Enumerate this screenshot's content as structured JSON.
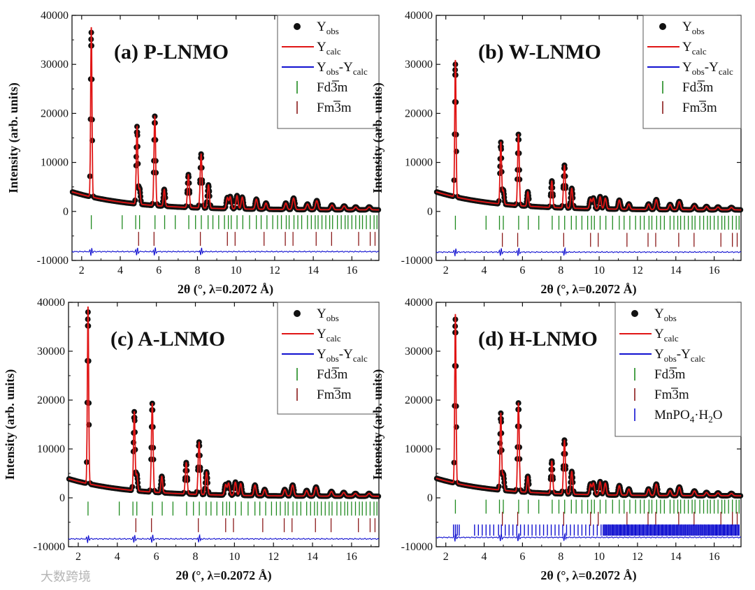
{
  "colors": {
    "obs": "#111111",
    "calc": "#e01515",
    "diff": "#1010d0",
    "fd3m": "#1f8a1f",
    "fm3m": "#8b1a1a",
    "mnpo4": "#1010d0"
  },
  "watermark": "大数跨境",
  "chart_data": [
    {
      "type": "scatter",
      "panel": "(a)",
      "title": "P-LNMO",
      "xlabel": "2θ (°, λ=0.2072 Å)",
      "ylabel": "Intensity (arb. units)",
      "xlim": [
        1.5,
        17.4
      ],
      "ylim": [
        -10000,
        40000
      ],
      "xticks": [
        2,
        4,
        6,
        8,
        10,
        12,
        14,
        16
      ],
      "yticks": [
        -10000,
        0,
        10000,
        20000,
        30000,
        40000
      ],
      "grid": false,
      "legend_position": "top-right",
      "background": {
        "start": 4000,
        "decay": 0.6,
        "floor": 300
      },
      "difference_offset": -8200,
      "peaks": [
        {
          "x": 2.5,
          "y": 36500
        },
        {
          "x": 4.87,
          "y": 17300
        },
        {
          "x": 5.0,
          "y": 4700
        },
        {
          "x": 5.79,
          "y": 19400
        },
        {
          "x": 6.28,
          "y": 4500
        },
        {
          "x": 7.53,
          "y": 7500
        },
        {
          "x": 8.19,
          "y": 11700
        },
        {
          "x": 8.57,
          "y": 5400
        },
        {
          "x": 9.55,
          "y": 2800
        },
        {
          "x": 9.7,
          "y": 3000
        },
        {
          "x": 10.05,
          "y": 3200
        },
        {
          "x": 10.32,
          "y": 2900
        },
        {
          "x": 11.05,
          "y": 2500
        },
        {
          "x": 11.55,
          "y": 1700
        },
        {
          "x": 12.58,
          "y": 1700
        },
        {
          "x": 12.98,
          "y": 2700
        },
        {
          "x": 13.7,
          "y": 1500
        },
        {
          "x": 14.18,
          "y": 2200
        },
        {
          "x": 14.97,
          "y": 1300
        },
        {
          "x": 15.6,
          "y": 1100
        },
        {
          "x": 16.2,
          "y": 900
        },
        {
          "x": 16.9,
          "y": 900
        }
      ],
      "reflection_rows": [
        {
          "phase": "Fd3m",
          "y": -2200,
          "color_key": "fd3m",
          "positions": [
            2.5,
            4.1,
            4.8,
            5.0,
            5.8,
            6.3,
            6.85,
            7.55,
            7.9,
            8.2,
            8.55,
            8.8,
            9.1,
            9.4,
            9.6,
            9.75,
            10.05,
            10.35,
            10.7,
            11.05,
            11.3,
            11.6,
            11.9,
            12.15,
            12.35,
            12.6,
            12.75,
            13.0,
            13.2,
            13.4,
            13.7,
            13.9,
            14.1,
            14.25,
            14.45,
            14.65,
            14.85,
            15.0,
            15.25,
            15.45,
            15.65,
            15.8,
            16.0,
            16.2,
            16.4,
            16.55,
            16.75,
            16.95,
            17.15,
            17.3
          ]
        },
        {
          "phase": "Fm3m",
          "y": -5600,
          "color_key": "fm3m",
          "positions": [
            4.95,
            5.75,
            8.15,
            9.55,
            9.95,
            11.45,
            12.55,
            12.95,
            14.15,
            14.95,
            16.35,
            16.95,
            17.2
          ]
        }
      ],
      "legend": [
        {
          "label": "Y",
          "sub": "obs",
          "type": "marker"
        },
        {
          "label": "Y",
          "sub": "calc",
          "type": "line",
          "color_key": "calc"
        },
        {
          "label": "Y",
          "sub": "obs",
          "label2": "-Y",
          "sub2": "calc",
          "type": "line",
          "color_key": "diff"
        },
        {
          "label": "Fd3m",
          "type": "tick",
          "color_key": "fd3m"
        },
        {
          "label": "Fm3m",
          "type": "tick",
          "color_key": "fm3m"
        }
      ]
    },
    {
      "type": "scatter",
      "panel": "(b)",
      "title": "W-LNMO",
      "xlabel": "2θ (°, λ=0.2072 Å)",
      "ylabel": "Intensity (arb. units)",
      "xlim": [
        1.5,
        17.4
      ],
      "ylim": [
        -10000,
        40000
      ],
      "xticks": [
        2,
        4,
        6,
        8,
        10,
        12,
        14,
        16
      ],
      "yticks": [
        -10000,
        0,
        10000,
        20000,
        30000,
        40000
      ],
      "grid": false,
      "legend_position": "top-right",
      "background": {
        "start": 4000,
        "decay": 0.6,
        "floor": 300
      },
      "difference_offset": -8300,
      "peaks": [
        {
          "x": 2.5,
          "y": 30000
        },
        {
          "x": 4.87,
          "y": 14100
        },
        {
          "x": 5.0,
          "y": 4300
        },
        {
          "x": 5.79,
          "y": 15700
        },
        {
          "x": 6.28,
          "y": 4000
        },
        {
          "x": 7.53,
          "y": 6200
        },
        {
          "x": 8.19,
          "y": 9400
        },
        {
          "x": 8.57,
          "y": 4700
        },
        {
          "x": 9.55,
          "y": 2500
        },
        {
          "x": 9.7,
          "y": 2700
        },
        {
          "x": 10.05,
          "y": 3000
        },
        {
          "x": 10.32,
          "y": 2700
        },
        {
          "x": 11.05,
          "y": 2300
        },
        {
          "x": 11.55,
          "y": 1500
        },
        {
          "x": 12.58,
          "y": 1500
        },
        {
          "x": 12.98,
          "y": 2400
        },
        {
          "x": 13.7,
          "y": 1400
        },
        {
          "x": 14.18,
          "y": 2000
        },
        {
          "x": 14.97,
          "y": 1200
        },
        {
          "x": 15.6,
          "y": 1000
        },
        {
          "x": 16.2,
          "y": 900
        },
        {
          "x": 16.9,
          "y": 800
        }
      ],
      "reflection_rows": [
        {
          "phase": "Fd3m",
          "y": -2300,
          "color_key": "fd3m",
          "positions": [
            2.5,
            4.1,
            4.8,
            5.0,
            5.8,
            6.3,
            6.85,
            7.55,
            7.9,
            8.2,
            8.55,
            8.8,
            9.1,
            9.4,
            9.6,
            9.75,
            10.05,
            10.35,
            10.7,
            11.05,
            11.3,
            11.6,
            11.9,
            12.15,
            12.35,
            12.6,
            12.75,
            13.0,
            13.2,
            13.4,
            13.7,
            13.9,
            14.1,
            14.25,
            14.45,
            14.65,
            14.85,
            15.0,
            15.25,
            15.45,
            15.65,
            15.8,
            16.0,
            16.2,
            16.4,
            16.55,
            16.75,
            16.95,
            17.15,
            17.3
          ]
        },
        {
          "phase": "Fm3m",
          "y": -5800,
          "color_key": "fm3m",
          "positions": [
            4.95,
            5.75,
            8.15,
            9.55,
            9.95,
            11.45,
            12.55,
            12.95,
            14.15,
            14.95,
            16.35,
            16.95,
            17.2
          ]
        }
      ],
      "legend": [
        {
          "label": "Y",
          "sub": "obs",
          "type": "marker"
        },
        {
          "label": "Y",
          "sub": "calc",
          "type": "line",
          "color_key": "calc"
        },
        {
          "label": "Y",
          "sub": "obs",
          "label2": "-Y",
          "sub2": "calc",
          "type": "line",
          "color_key": "diff"
        },
        {
          "label": "Fd3m",
          "type": "tick",
          "color_key": "fd3m"
        },
        {
          "label": "Fm3m",
          "type": "tick",
          "color_key": "fm3m"
        }
      ]
    },
    {
      "type": "scatter",
      "panel": "(c)",
      "title": "A-LNMO",
      "xlabel": "2θ (°, λ=0.2072 Å)",
      "ylabel": "Intensity (arb. units)",
      "xlim": [
        1.5,
        17.4
      ],
      "ylim": [
        -10000,
        40000
      ],
      "xticks": [
        2,
        4,
        6,
        8,
        10,
        12,
        14,
        16
      ],
      "yticks": [
        -10000,
        0,
        10000,
        20000,
        30000,
        40000
      ],
      "grid": false,
      "legend_position": "top-right",
      "background": {
        "start": 3900,
        "decay": 0.6,
        "floor": 300
      },
      "difference_offset": -8400,
      "peaks": [
        {
          "x": 2.5,
          "y": 38000
        },
        {
          "x": 4.87,
          "y": 17600
        },
        {
          "x": 5.0,
          "y": 4800
        },
        {
          "x": 5.79,
          "y": 19300
        },
        {
          "x": 6.28,
          "y": 4400
        },
        {
          "x": 7.53,
          "y": 7200
        },
        {
          "x": 8.19,
          "y": 11400
        },
        {
          "x": 8.57,
          "y": 5300
        },
        {
          "x": 9.55,
          "y": 2700
        },
        {
          "x": 9.7,
          "y": 3000
        },
        {
          "x": 10.05,
          "y": 3200
        },
        {
          "x": 10.32,
          "y": 2900
        },
        {
          "x": 11.05,
          "y": 2600
        },
        {
          "x": 11.55,
          "y": 1700
        },
        {
          "x": 12.58,
          "y": 1700
        },
        {
          "x": 12.98,
          "y": 2600
        },
        {
          "x": 13.7,
          "y": 1500
        },
        {
          "x": 14.18,
          "y": 2200
        },
        {
          "x": 14.97,
          "y": 1300
        },
        {
          "x": 15.6,
          "y": 1100
        },
        {
          "x": 16.2,
          "y": 900
        },
        {
          "x": 16.9,
          "y": 900
        }
      ],
      "reflection_rows": [
        {
          "phase": "Fd3m",
          "y": -2200,
          "color_key": "fd3m",
          "positions": [
            2.5,
            4.1,
            4.8,
            5.0,
            5.8,
            6.3,
            6.85,
            7.55,
            7.9,
            8.2,
            8.55,
            8.8,
            9.1,
            9.4,
            9.6,
            9.75,
            10.05,
            10.35,
            10.7,
            11.05,
            11.3,
            11.6,
            11.9,
            12.15,
            12.35,
            12.6,
            12.75,
            13.0,
            13.2,
            13.4,
            13.7,
            13.9,
            14.1,
            14.25,
            14.45,
            14.65,
            14.85,
            15.0,
            15.25,
            15.45,
            15.65,
            15.8,
            16.0,
            16.2,
            16.4,
            16.55,
            16.75,
            16.95,
            17.15,
            17.3
          ]
        },
        {
          "phase": "Fm3m",
          "y": -5600,
          "color_key": "fm3m",
          "positions": [
            4.95,
            5.75,
            8.15,
            9.55,
            9.95,
            11.45,
            12.55,
            12.95,
            14.15,
            14.95,
            16.35,
            16.95,
            17.2
          ]
        }
      ],
      "legend": [
        {
          "label": "Y",
          "sub": "obs",
          "type": "marker"
        },
        {
          "label": "Y",
          "sub": "calc",
          "type": "line",
          "color_key": "calc"
        },
        {
          "label": "Y",
          "sub": "obs",
          "label2": "-Y",
          "sub2": "calc",
          "type": "line",
          "color_key": "diff"
        },
        {
          "label": "Fd3m",
          "type": "tick",
          "color_key": "fd3m"
        },
        {
          "label": "Fm3m",
          "type": "tick",
          "color_key": "fm3m"
        }
      ]
    },
    {
      "type": "scatter",
      "panel": "(d)",
      "title": "H-LNMO",
      "xlabel": "2θ (°, λ=0.2072 Å)",
      "ylabel": "Intensity (arb. units)",
      "xlim": [
        1.5,
        17.4
      ],
      "ylim": [
        -10000,
        40000
      ],
      "xticks": [
        2,
        4,
        6,
        8,
        10,
        12,
        14,
        16
      ],
      "yticks": [
        -10000,
        0,
        10000,
        20000,
        30000,
        40000
      ],
      "grid": false,
      "legend_position": "top-right",
      "background": {
        "start": 4000,
        "decay": 0.6,
        "floor": 400
      },
      "difference_offset": -8100,
      "peaks": [
        {
          "x": 2.5,
          "y": 36500
        },
        {
          "x": 4.87,
          "y": 17300
        },
        {
          "x": 5.0,
          "y": 4800
        },
        {
          "x": 5.79,
          "y": 19400
        },
        {
          "x": 6.28,
          "y": 4400
        },
        {
          "x": 7.53,
          "y": 7500
        },
        {
          "x": 8.19,
          "y": 11800
        },
        {
          "x": 8.57,
          "y": 5400
        },
        {
          "x": 9.55,
          "y": 2800
        },
        {
          "x": 9.7,
          "y": 3000
        },
        {
          "x": 10.05,
          "y": 3300
        },
        {
          "x": 10.32,
          "y": 3000
        },
        {
          "x": 11.05,
          "y": 2500
        },
        {
          "x": 11.55,
          "y": 1800
        },
        {
          "x": 12.58,
          "y": 1800
        },
        {
          "x": 12.98,
          "y": 2800
        },
        {
          "x": 13.7,
          "y": 1500
        },
        {
          "x": 14.18,
          "y": 2200
        },
        {
          "x": 14.97,
          "y": 1400
        },
        {
          "x": 15.6,
          "y": 1100
        },
        {
          "x": 16.2,
          "y": 1000
        },
        {
          "x": 16.9,
          "y": 900
        }
      ],
      "reflection_rows": [
        {
          "phase": "Fd3m",
          "y": -1800,
          "color_key": "fd3m",
          "positions": [
            2.5,
            4.1,
            4.8,
            5.0,
            5.8,
            6.3,
            6.85,
            7.55,
            7.9,
            8.2,
            8.55,
            8.8,
            9.1,
            9.4,
            9.6,
            9.75,
            10.05,
            10.35,
            10.7,
            11.05,
            11.3,
            11.6,
            11.9,
            12.15,
            12.35,
            12.6,
            12.75,
            13.0,
            13.2,
            13.4,
            13.7,
            13.9,
            14.1,
            14.25,
            14.45,
            14.65,
            14.85,
            15.0,
            15.25,
            15.45,
            15.65,
            15.8,
            16.0,
            16.2,
            16.4,
            16.55,
            16.75,
            16.95,
            17.15,
            17.3
          ]
        },
        {
          "phase": "Fm3m",
          "y": -4300,
          "color_key": "fm3m",
          "positions": [
            4.95,
            5.75,
            8.15,
            9.55,
            9.95,
            11.45,
            12.55,
            12.95,
            14.15,
            14.95,
            16.35,
            16.95,
            17.2
          ]
        },
        {
          "phase": "MnPO4·H2O",
          "y": -6600,
          "color_key": "mnpo4",
          "dense": true,
          "positions": [
            2.4,
            2.5,
            2.6,
            2.7,
            3.5,
            3.7,
            3.9,
            4.1,
            4.3,
            4.5,
            4.75,
            4.9,
            5.1,
            5.3,
            5.5,
            5.7,
            5.9,
            6.1,
            6.3,
            6.5,
            6.7,
            6.9,
            7.1,
            7.3,
            7.5,
            7.7,
            7.9,
            8.1,
            8.3,
            8.5,
            8.7,
            8.9,
            9.1,
            9.3,
            9.5,
            9.7,
            9.9,
            10.1,
            10.3,
            10.5,
            10.7,
            10.9,
            11.1,
            11.3,
            11.5,
            11.7,
            11.9,
            12.1,
            12.3,
            12.5,
            12.7,
            12.9,
            13.1,
            13.3,
            13.5,
            13.7,
            13.9,
            14.1,
            14.3,
            14.5,
            14.7,
            14.9,
            15.1,
            15.3,
            15.5,
            15.7,
            15.9,
            16.1,
            16.3,
            16.5,
            16.7,
            16.9,
            17.1,
            17.3
          ]
        }
      ],
      "legend": [
        {
          "label": "Y",
          "sub": "obs",
          "type": "marker"
        },
        {
          "label": "Y",
          "sub": "calc",
          "type": "line",
          "color_key": "calc"
        },
        {
          "label": "Y",
          "sub": "obs",
          "label2": "-Y",
          "sub2": "calc",
          "type": "line",
          "color_key": "diff"
        },
        {
          "label": "Fd3m",
          "type": "tick",
          "color_key": "fd3m"
        },
        {
          "label": "Fm3m",
          "type": "tick",
          "color_key": "fm3m"
        },
        {
          "label": "MnPO",
          "sub": "4",
          "label2": "·H",
          "sub2": "2",
          "label3": "O",
          "type": "tick",
          "color_key": "mnpo4"
        }
      ]
    }
  ]
}
